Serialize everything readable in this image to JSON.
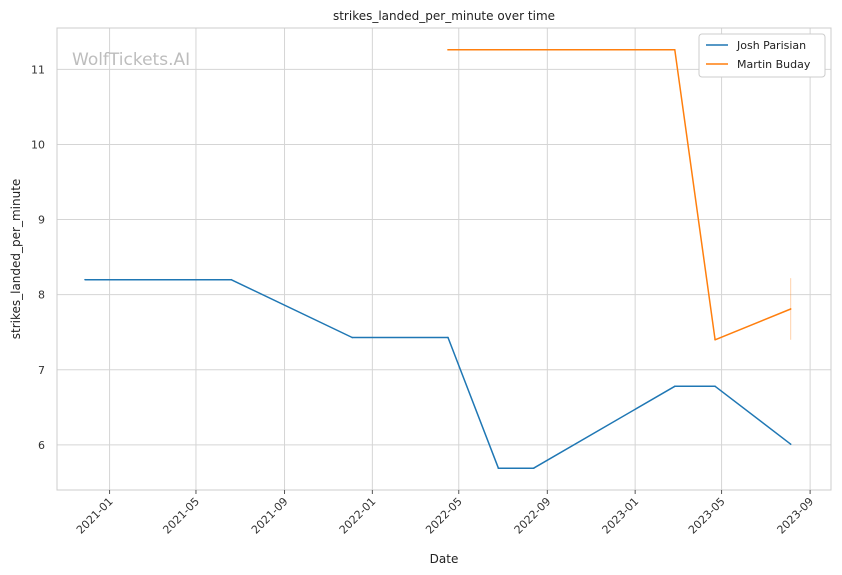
{
  "chart_data": {
    "type": "line",
    "title": "strikes_landed_per_minute over time",
    "xlabel": "Date",
    "ylabel": "strikes_landed_per_minute",
    "watermark": "WolfTickets.AI",
    "x_ticks": [
      "2021-01",
      "2021-05",
      "2021-09",
      "2022-01",
      "2022-05",
      "2022-09",
      "2023-01",
      "2023-05",
      "2023-09"
    ],
    "y_ticks": [
      6,
      7,
      8,
      9,
      10,
      11
    ],
    "xlim": [
      "2020-10-20",
      "2023-09-30"
    ],
    "ylim": [
      5.4,
      11.55
    ],
    "grid": true,
    "legend_position": "top-right",
    "series": [
      {
        "name": "Josh Parisian",
        "color": "#1f77b4",
        "points": [
          {
            "x": "2020-11-28",
            "y": 8.2
          },
          {
            "x": "2021-06-19",
            "y": 8.2
          },
          {
            "x": "2021-12-04",
            "y": 7.43
          },
          {
            "x": "2022-04-16",
            "y": 7.43
          },
          {
            "x": "2022-06-25",
            "y": 5.69
          },
          {
            "x": "2022-08-13",
            "y": 5.69
          },
          {
            "x": "2023-02-25",
            "y": 6.78
          },
          {
            "x": "2023-04-22",
            "y": 6.78
          },
          {
            "x": "2023-08-05",
            "y": 6.01
          }
        ]
      },
      {
        "name": "Martin Buday",
        "color": "#ff7f0e",
        "points": [
          {
            "x": "2022-04-16",
            "y": 11.26
          },
          {
            "x": "2023-02-25",
            "y": 11.26
          },
          {
            "x": "2023-04-22",
            "y": 7.4
          },
          {
            "x": "2023-08-05",
            "y": 7.81
          }
        ],
        "error_bar": {
          "x": "2023-08-05",
          "low": 7.4,
          "high": 8.22
        }
      }
    ]
  }
}
